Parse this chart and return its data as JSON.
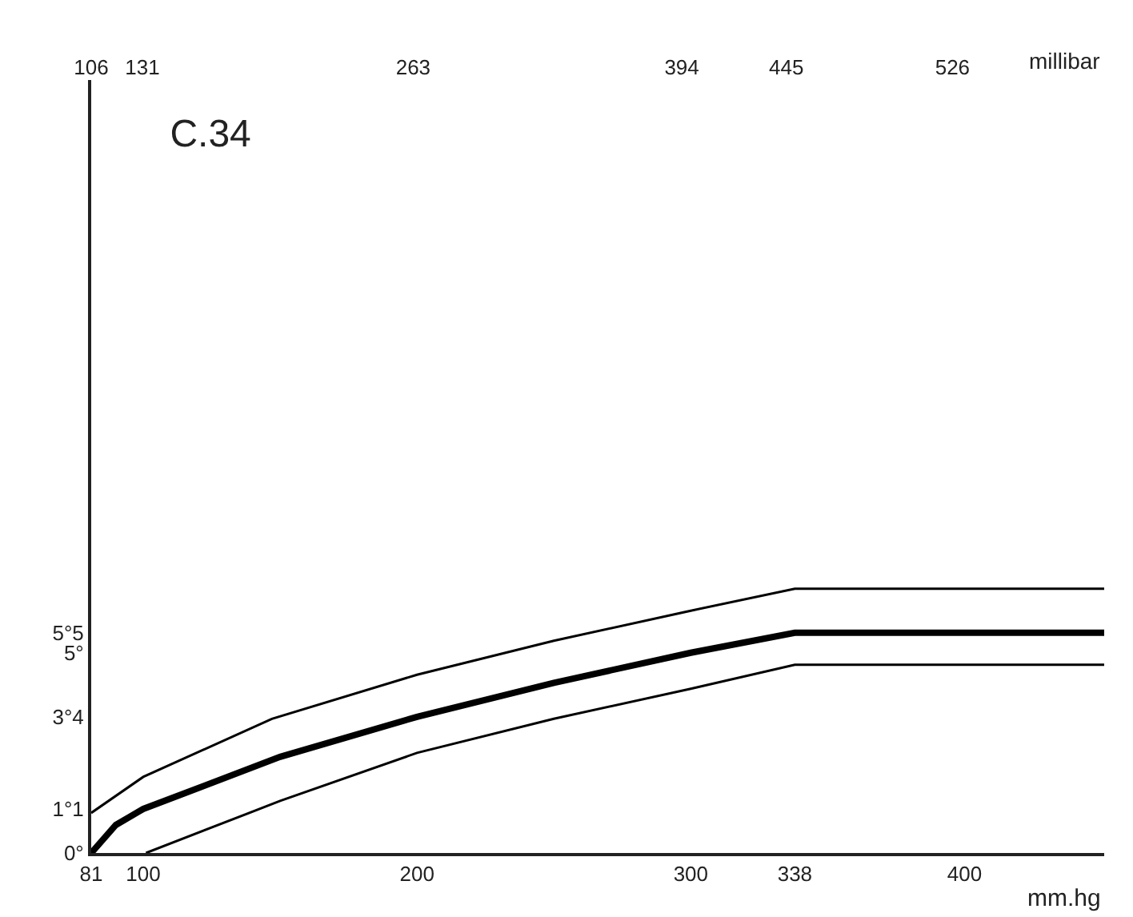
{
  "chart_data": {
    "type": "line",
    "title": "C.34",
    "xlabel": "mm.hg",
    "x2label": "millibar",
    "xlim": [
      81,
      451
    ],
    "xticks": [
      81,
      100,
      200,
      300,
      338,
      400
    ],
    "x2lim": [
      106,
      600
    ],
    "x2ticks": [
      106,
      131,
      263,
      394,
      445,
      526
    ],
    "ylim": [
      0,
      19.3
    ],
    "yticks": [
      {
        "value": 0,
        "label": "0°"
      },
      {
        "value": 1.1,
        "label": "1°1"
      },
      {
        "value": 3.4,
        "label": "3°4"
      },
      {
        "value": 5,
        "label": "5°"
      },
      {
        "value": 5.5,
        "label": "5°5"
      }
    ],
    "marker": "none",
    "series": [
      {
        "color": "#000000",
        "x": [
          81,
          100,
          147,
          200,
          250,
          300,
          338,
          451
        ],
        "values": [
          1.0,
          1.9,
          3.35,
          4.45,
          5.3,
          6.05,
          6.6,
          6.6
        ]
      },
      {
        "color": "#000000",
        "x": [
          81,
          90,
          100,
          150,
          200,
          250,
          300,
          338,
          451
        ],
        "values": [
          0,
          0.7,
          1.1,
          2.4,
          3.4,
          4.25,
          5.0,
          5.5,
          5.5
        ]
      },
      {
        "color": "#000000",
        "x": [
          101,
          150,
          200,
          250,
          300,
          338,
          451
        ],
        "values": [
          0,
          1.3,
          2.5,
          3.35,
          4.1,
          4.7,
          4.7
        ]
      }
    ]
  }
}
